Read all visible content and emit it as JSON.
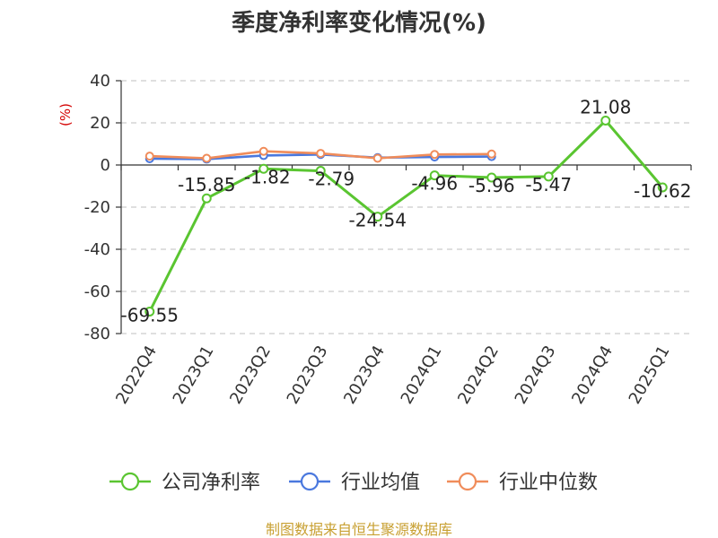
{
  "chart_data": {
    "type": "line",
    "title": "季度净利率变化情况(%)",
    "ylabel": "(%)",
    "ylim": [
      -80,
      40
    ],
    "yticks": [
      40,
      20,
      0,
      -20,
      -40,
      -60,
      -80
    ],
    "categories": [
      "2022Q4",
      "2023Q1",
      "2023Q2",
      "2023Q3",
      "2023Q4",
      "2024Q1",
      "2024Q2",
      "2024Q3",
      "2024Q4",
      "2025Q1"
    ],
    "series": [
      {
        "name": "公司净利率",
        "color": "#5ac531",
        "values": [
          -69.55,
          -15.85,
          -1.82,
          -2.79,
          -24.54,
          -4.96,
          -5.96,
          -5.47,
          21.08,
          -10.62
        ],
        "labels": [
          "-69.55",
          "-15.85",
          "-1.82",
          "-2.79",
          "-24.54",
          "-4.96",
          "-5.96",
          "-5.47",
          "21.08",
          "-10.62"
        ]
      },
      {
        "name": "行业均值",
        "color": "#4a78de",
        "values": [
          3.0,
          2.8,
          4.5,
          5.0,
          3.5,
          3.8,
          4.0,
          null,
          null,
          null
        ]
      },
      {
        "name": "行业中位数",
        "color": "#f08c5a",
        "values": [
          4.2,
          3.2,
          6.5,
          5.5,
          3.2,
          5.0,
          5.2,
          null,
          null,
          null
        ]
      }
    ],
    "grid": true,
    "legend_position": "bottom"
  },
  "source": "制图数据来自恒生聚源数据库"
}
